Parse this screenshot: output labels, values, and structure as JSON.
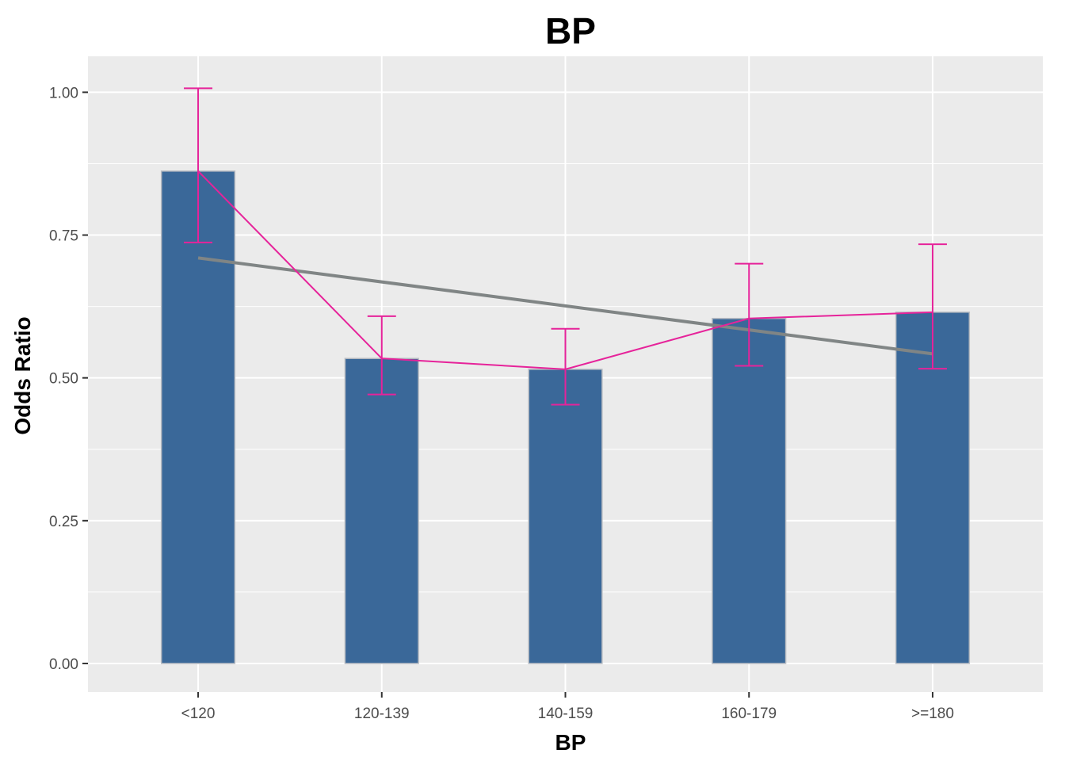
{
  "chart_data": {
    "type": "bar",
    "title": "BP",
    "xlabel": "BP",
    "ylabel": "Odds Ratio",
    "categories": [
      "<120",
      "120-139",
      "140-159",
      "160-179",
      ">=180"
    ],
    "values": [
      0.862,
      0.534,
      0.515,
      0.604,
      0.615
    ],
    "error_bars": {
      "lower": [
        0.737,
        0.471,
        0.453,
        0.521,
        0.516
      ],
      "upper": [
        1.007,
        0.608,
        0.586,
        0.7,
        0.734
      ]
    },
    "trend_line": {
      "start": 0.71,
      "end": 0.542
    },
    "ylim": [
      -0.05,
      1.063
    ],
    "yticks": [
      0.0,
      0.25,
      0.5,
      0.75,
      1.0
    ],
    "ytick_labels": [
      "0.00",
      "0.25",
      "0.50",
      "0.75",
      "1.00"
    ],
    "grid": true,
    "colors": {
      "bar_fill": "#3a6899",
      "bar_stroke": "#b8bcc2",
      "point_line": "#e6239a",
      "trend_line": "#808585",
      "panel_bg": "#ebebeb",
      "grid": "#ffffff"
    }
  }
}
